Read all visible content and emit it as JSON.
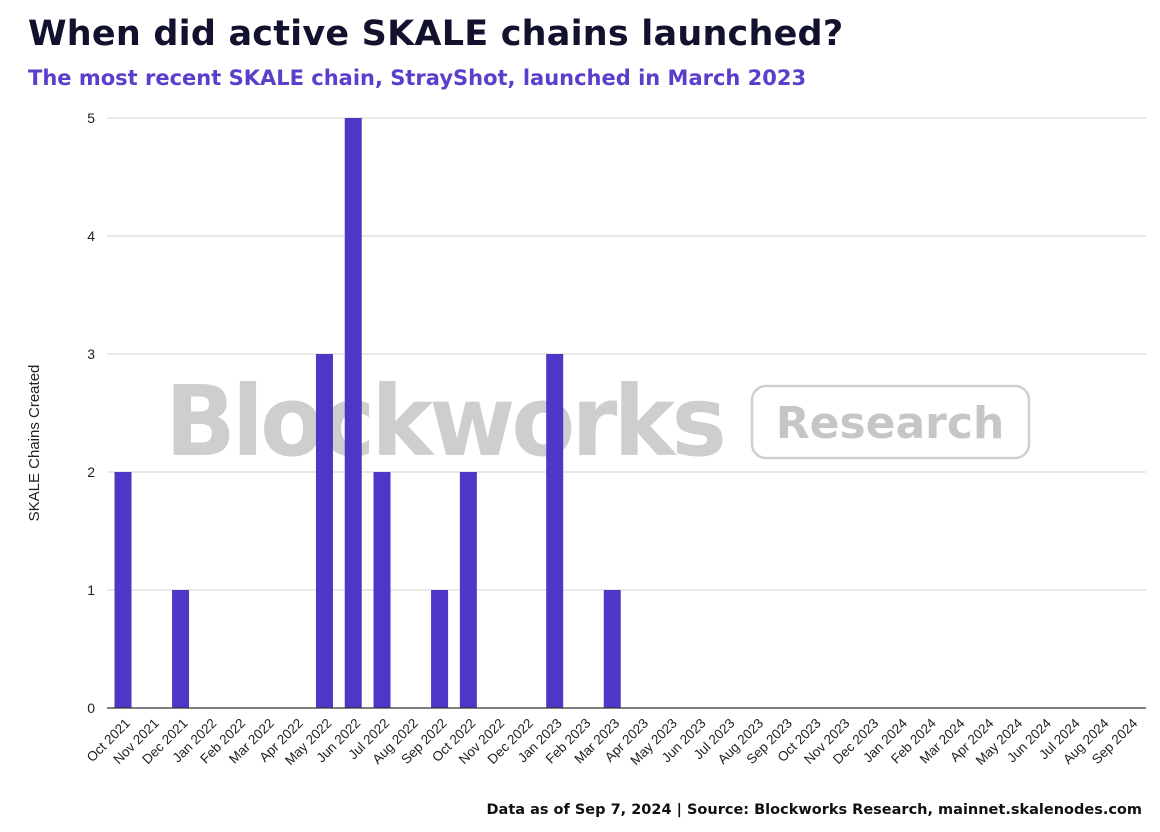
{
  "title": "When did active SKALE chains launched?",
  "subtitle": "The most recent SKALE chain, StrayShot, launched in March 2023",
  "footer": "Data as of Sep 7, 2024 | Source: Blockworks Research, mainnet.skalenodes.com",
  "watermark": {
    "brand": "Blockworks",
    "tag": "Research"
  },
  "colors": {
    "bar": "#5036c6",
    "title": "#12122e",
    "subtitle": "#5b3ec9",
    "grid": "#dcdcdc"
  },
  "chart_data": {
    "type": "bar",
    "ylabel": "SKALE Chains Created",
    "xlabel": "",
    "ylim": [
      0,
      5
    ],
    "yticks": [
      0,
      1,
      2,
      3,
      4,
      5
    ],
    "grid": true,
    "categories": [
      "Oct 2021",
      "Nov 2021",
      "Dec 2021",
      "Jan 2022",
      "Feb 2022",
      "Mar 2022",
      "Apr 2022",
      "May 2022",
      "Jun 2022",
      "Jul 2022",
      "Aug 2022",
      "Sep 2022",
      "Oct 2022",
      "Nov 2022",
      "Dec 2022",
      "Jan 2023",
      "Feb 2023",
      "Mar 2023",
      "Apr 2023",
      "May 2023",
      "Jun 2023",
      "Jul 2023",
      "Aug 2023",
      "Sep 2023",
      "Oct 2023",
      "Nov 2023",
      "Dec 2023",
      "Jan 2024",
      "Feb 2024",
      "Mar 2024",
      "Apr 2024",
      "May 2024",
      "Jun 2024",
      "Jul 2024",
      "Aug 2024",
      "Sep 2024"
    ],
    "values": [
      2,
      0,
      1,
      0,
      0,
      0,
      0,
      3,
      5,
      2,
      0,
      1,
      2,
      0,
      0,
      3,
      0,
      1,
      0,
      0,
      0,
      0,
      0,
      0,
      0,
      0,
      0,
      0,
      0,
      0,
      0,
      0,
      0,
      0,
      0,
      0
    ]
  }
}
